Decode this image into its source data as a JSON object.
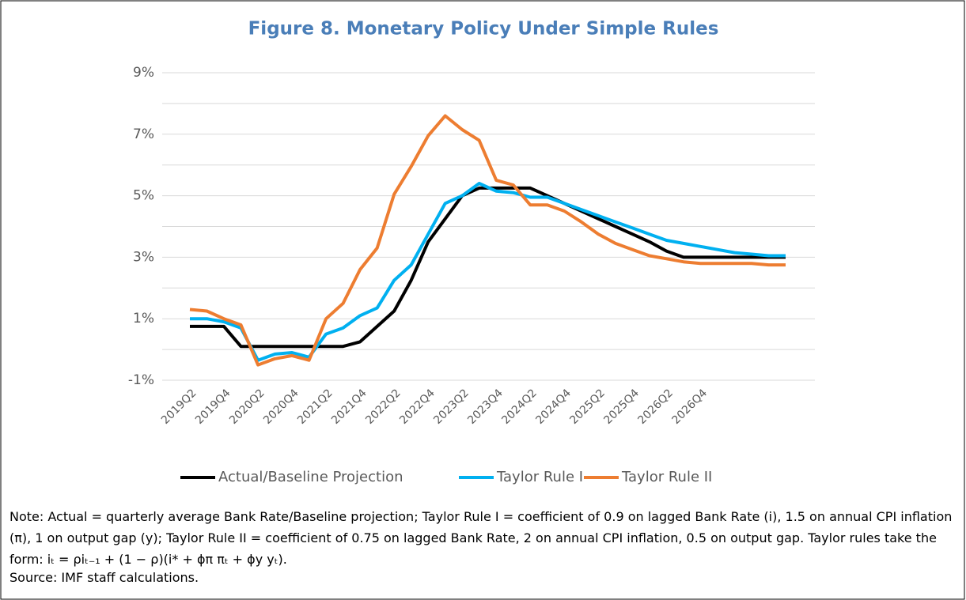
{
  "chart_data": {
    "type": "line",
    "title": "Figure 8. Monetary Policy Under Simple Rules",
    "categories": [
      "2019Q2",
      null,
      "2019Q4",
      null,
      "2020Q2",
      null,
      "2020Q4",
      null,
      "2021Q2",
      null,
      "2021Q4",
      null,
      "2022Q2",
      null,
      "2022Q4",
      null,
      "2023Q2",
      null,
      "2023Q4",
      null,
      "2024Q2",
      null,
      "2024Q4",
      null,
      "2025Q2",
      null,
      "2025Q4",
      null,
      "2026Q2",
      null,
      "2026Q4",
      null,
      null,
      null,
      null,
      null
    ],
    "series": [
      {
        "name": "Actual/Baseline Projection",
        "color": "#000000",
        "values": [
          0.75,
          0.75,
          0.75,
          0.1,
          0.1,
          0.1,
          0.1,
          0.1,
          0.1,
          0.1,
          0.25,
          0.75,
          1.25,
          2.25,
          3.5,
          4.25,
          5.0,
          5.25,
          5.25,
          5.25,
          5.25,
          5.0,
          4.75,
          4.5,
          4.25,
          4.0,
          3.75,
          3.5,
          3.2,
          3.0,
          3.0,
          3.0,
          3.0,
          3.0,
          3.0,
          3.0
        ]
      },
      {
        "name": "Taylor Rule I",
        "color": "#00b0f0",
        "values": [
          1.0,
          1.0,
          0.9,
          0.7,
          -0.35,
          -0.15,
          -0.1,
          -0.25,
          0.5,
          0.7,
          1.1,
          1.35,
          2.25,
          2.75,
          3.75,
          4.75,
          5.0,
          5.4,
          5.15,
          5.1,
          4.95,
          4.95,
          4.75,
          4.55,
          4.35,
          4.15,
          3.95,
          3.75,
          3.55,
          3.45,
          3.35,
          3.25,
          3.15,
          3.1,
          3.05,
          3.05
        ]
      },
      {
        "name": "Taylor Rule II",
        "color": "#ed7d31",
        "values": [
          1.3,
          1.25,
          1.0,
          0.8,
          -0.5,
          -0.3,
          -0.2,
          -0.35,
          1.0,
          1.5,
          2.6,
          3.3,
          5.05,
          5.95,
          6.95,
          7.6,
          7.15,
          6.8,
          5.5,
          5.35,
          4.7,
          4.7,
          4.5,
          4.15,
          3.75,
          3.45,
          3.25,
          3.05,
          2.95,
          2.85,
          2.8,
          2.8,
          2.8,
          2.8,
          2.75,
          2.75
        ]
      }
    ],
    "ylim": [
      -1,
      9
    ],
    "yticks": [
      {
        "value": -1,
        "label": "-1%"
      },
      {
        "value": 1,
        "label": "1%"
      },
      {
        "value": 3,
        "label": "3%"
      },
      {
        "value": 5,
        "label": "5%"
      },
      {
        "value": 7,
        "label": "7%"
      },
      {
        "value": 9,
        "label": "9%"
      }
    ],
    "minor_yticks": [
      0,
      2,
      4,
      6,
      8
    ],
    "grid": true,
    "legend": "bottom",
    "note": "Note: Actual = quarterly average Bank Rate/Baseline projection; Taylor Rule I = coefficient of 0.9 on lagged Bank Rate (i), 1.5 on annual CPI inflation (π), 1 on output gap (y); Taylor Rule II = coefficient of 0.75 on lagged Bank Rate, 2 on annual CPI inflation, 0.5 on output gap. Taylor rules take the form: iₜ = ρiₜ₋₁ + (1 − ρ)(i* + ϕπ πₜ + ϕy yₜ).",
    "source": "Source: IMF staff calculations."
  }
}
